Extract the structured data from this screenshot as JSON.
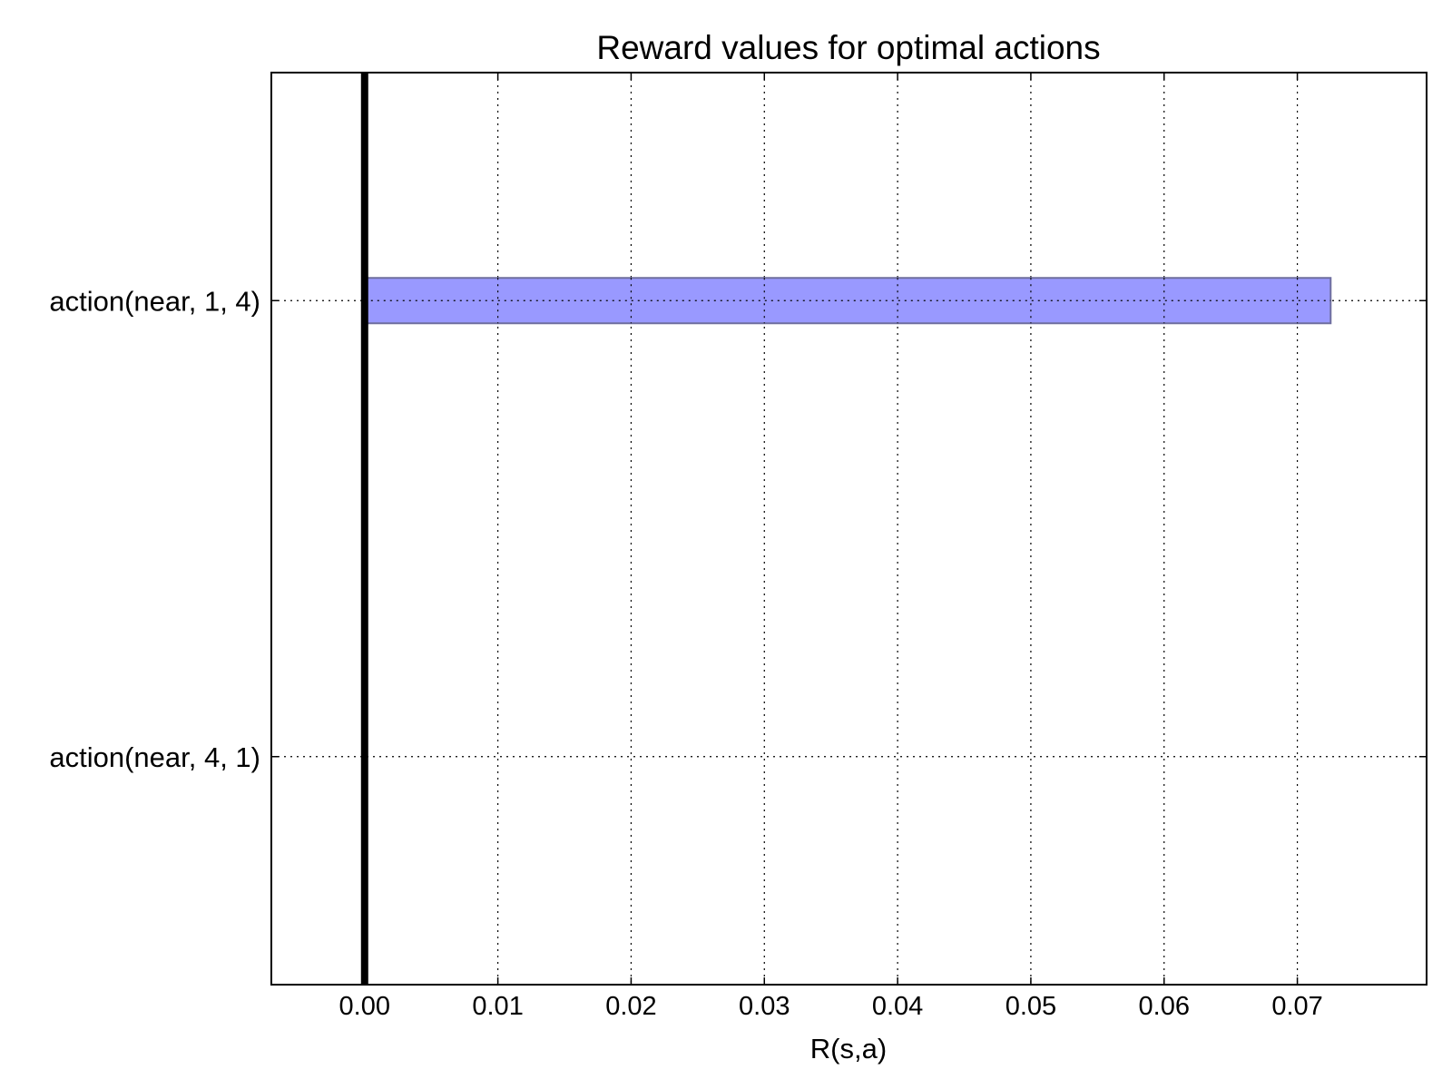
{
  "chart_data": {
    "type": "bar",
    "orientation": "horizontal",
    "title": "Reward values for optimal actions",
    "xlabel": "R(s,a)",
    "ylabel": "",
    "categories": [
      "action(near, 1, 4)",
      "action(near, 4, 1)"
    ],
    "values": [
      0.0725,
      0.0
    ],
    "xlim": [
      -0.007,
      0.0797
    ],
    "xticks": [
      "0.00",
      "0.01",
      "0.02",
      "0.03",
      "0.04",
      "0.05",
      "0.06",
      "0.07"
    ],
    "grid": true,
    "legend": "none",
    "zero_line": true,
    "colors": {
      "bar_fill": "#9999ff",
      "bar_edge": "#6e6e9e",
      "zero_line": "#000000",
      "axes": "#000000"
    }
  }
}
